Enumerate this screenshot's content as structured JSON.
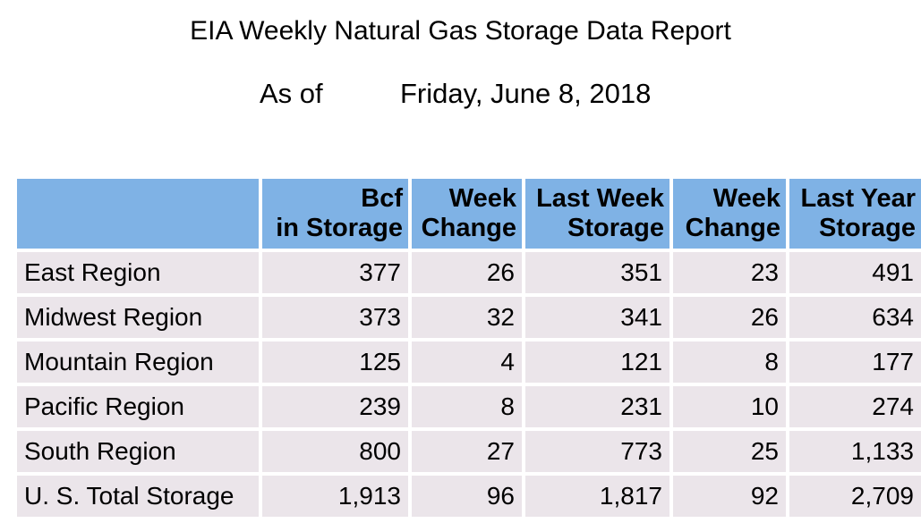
{
  "report": {
    "title": "EIA Weekly Natural Gas Storage Data Report",
    "as_of_label": "As of",
    "as_of_date": "Friday, June 8, 2018"
  },
  "table": {
    "header_color": "#7fb2e5",
    "row_color": "#ebe5ea",
    "columns": [
      {
        "line1": "Bcf",
        "line2": "in Storage"
      },
      {
        "line1": "Week",
        "line2": "Change"
      },
      {
        "line1": "Last Week",
        "line2": "Storage"
      },
      {
        "line1": "Week",
        "line2": "Change"
      },
      {
        "line1": "Last Year",
        "line2": "Storage"
      }
    ],
    "rows": [
      {
        "region": "East Region",
        "values": [
          "377",
          "26",
          "351",
          "23",
          "491"
        ]
      },
      {
        "region": "Midwest Region",
        "values": [
          "373",
          "32",
          "341",
          "26",
          "634"
        ]
      },
      {
        "region": "Mountain Region",
        "values": [
          "125",
          "4",
          "121",
          "8",
          "177"
        ]
      },
      {
        "region": "Pacific Region",
        "values": [
          "239",
          "8",
          "231",
          "10",
          "274"
        ]
      },
      {
        "region": "South Region",
        "values": [
          "800",
          "27",
          "773",
          "25",
          "1,133"
        ]
      },
      {
        "region": "U. S. Total Storage",
        "values": [
          "1,913",
          "96",
          "1,817",
          "92",
          "2,709"
        ]
      }
    ]
  }
}
